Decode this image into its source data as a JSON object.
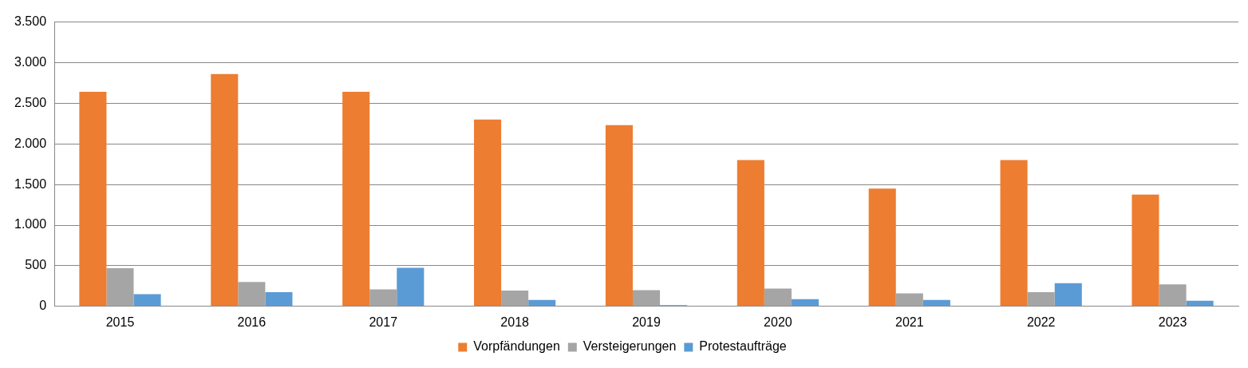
{
  "chart_data": {
    "type": "bar",
    "categories": [
      "2015",
      "2016",
      "2017",
      "2018",
      "2019",
      "2020",
      "2021",
      "2022",
      "2023"
    ],
    "series": [
      {
        "name": "Vorpfändungen",
        "color": "#ed7d31",
        "values": [
          2640,
          2860,
          2640,
          2300,
          2230,
          1800,
          1450,
          1800,
          1375
        ]
      },
      {
        "name": "Versteigerungen",
        "color": "#a5a5a5",
        "values": [
          470,
          300,
          210,
          195,
          200,
          220,
          160,
          175,
          270
        ]
      },
      {
        "name": "Protestaufträge",
        "color": "#5b9bd5",
        "values": [
          150,
          175,
          475,
          80,
          15,
          90,
          80,
          285,
          70
        ]
      }
    ],
    "ylim": [
      0,
      3500
    ],
    "yticks": [
      0,
      {
        "value": 500,
        "label": "500"
      },
      {
        "value": 1000,
        "label": "1.000"
      },
      {
        "value": 1500,
        "label": "1.500"
      },
      {
        "value": 2000,
        "label": "2.000"
      },
      {
        "value": 2500,
        "label": "2.500"
      },
      {
        "value": 3000,
        "label": "3.000"
      },
      {
        "value": 3500,
        "label": "3.500"
      }
    ],
    "grid": "y",
    "legend": "bottom"
  }
}
